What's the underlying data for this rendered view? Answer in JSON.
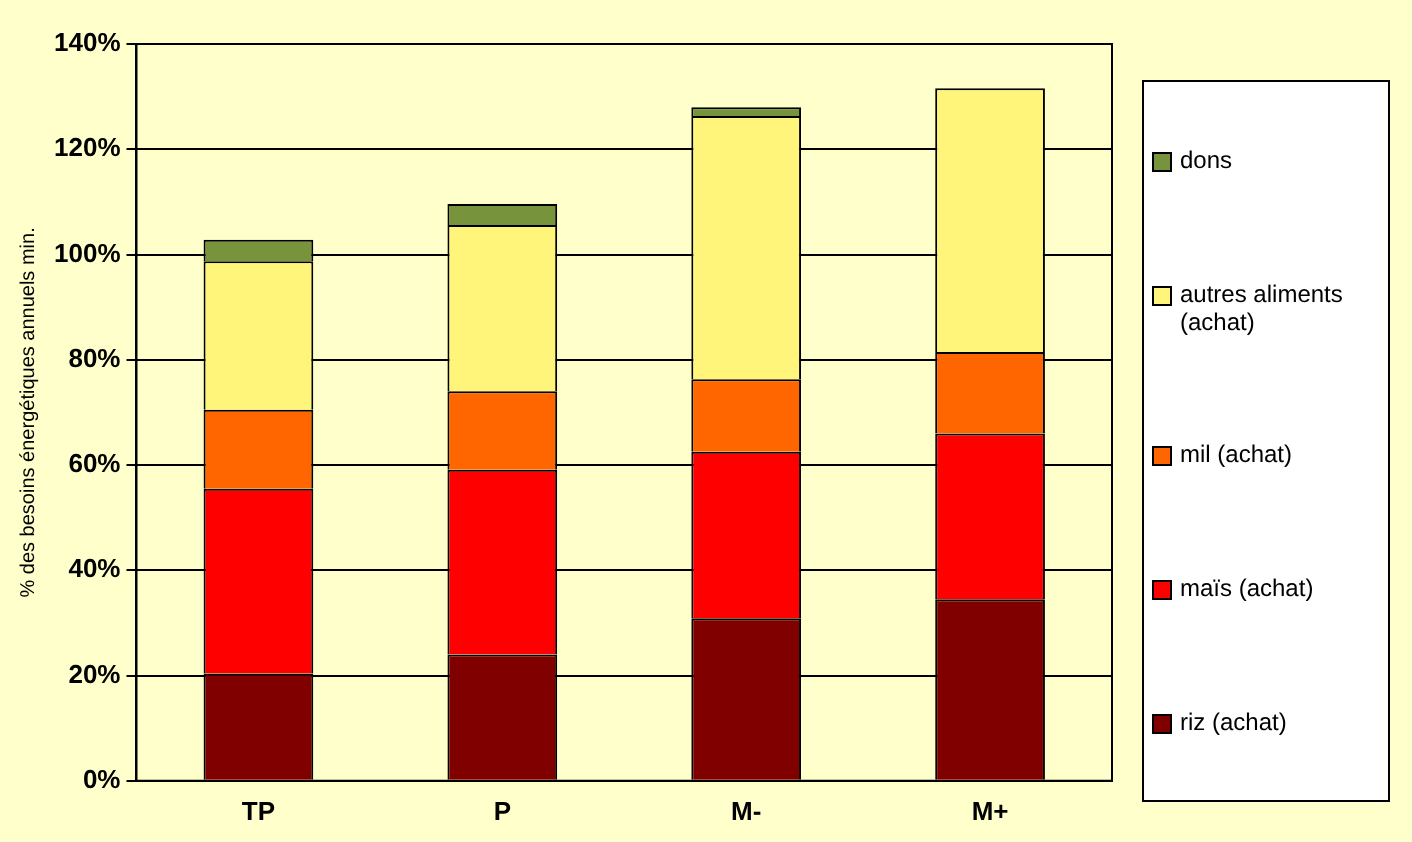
{
  "chart_data": {
    "type": "bar",
    "stacked": true,
    "ylabel": "% des besoins énergétiques annuels min.",
    "categories": [
      "TP",
      "P",
      "M-",
      "M+"
    ],
    "series": [
      {
        "name": "riz (achat)",
        "color": "#800000",
        "values": [
          20.4,
          24,
          30.9,
          34.5
        ]
      },
      {
        "name": "maïs (achat)",
        "color": "#ff0000",
        "values": [
          35.1,
          35.1,
          31.6,
          31.5
        ]
      },
      {
        "name": "mil (achat)",
        "color": "#ff6600",
        "values": [
          15,
          14.9,
          13.8,
          15.5
        ]
      },
      {
        "name": "autres aliments (achat)",
        "color": "#fff57a",
        "values": [
          28.2,
          31.6,
          50,
          50.1
        ]
      },
      {
        "name": "dons",
        "color": "#77933c",
        "values": [
          4.1,
          4,
          1.7,
          null
        ]
      }
    ],
    "ylim": [
      0,
      140
    ],
    "yticks": [
      {
        "value": 0,
        "label": "0%"
      },
      {
        "value": 20,
        "label": "20%"
      },
      {
        "value": 40,
        "label": "40%"
      },
      {
        "value": 60,
        "label": "60%"
      },
      {
        "value": 80,
        "label": "80%"
      },
      {
        "value": 100,
        "label": "100%"
      },
      {
        "value": 120,
        "label": "120%"
      },
      {
        "value": 140,
        "label": "140%"
      }
    ],
    "grid": "y",
    "legend": "right"
  }
}
